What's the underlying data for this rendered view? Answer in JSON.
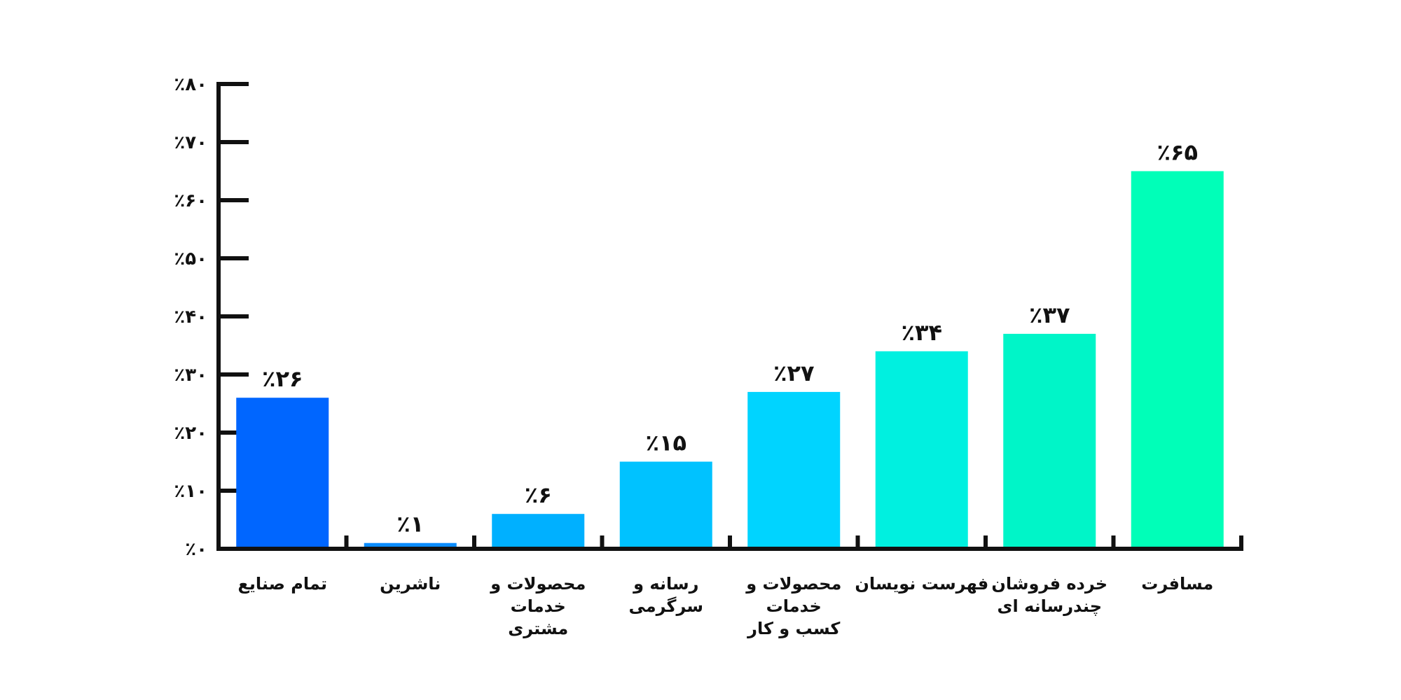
{
  "chart_data": {
    "type": "bar",
    "title": "",
    "xlabel": "",
    "ylabel": "",
    "ylim": [
      0,
      80
    ],
    "grid": false,
    "value_prefix": "٪",
    "yticks": [
      0,
      10,
      20,
      30,
      40,
      50,
      60,
      70,
      80
    ],
    "ytick_labels": [
      "٪۰",
      "٪۱۰",
      "٪۲۰",
      "٪۳۰",
      "٪۴۰",
      "٪۵۰",
      "٪۶۰",
      "٪۷۰",
      "٪۸۰"
    ],
    "categories": [
      [
        "تمام صنایع"
      ],
      [
        "ناشرین"
      ],
      [
        "محصولات و",
        "خدمات",
        "مشتری"
      ],
      [
        "رسانه و",
        "سرگرمی"
      ],
      [
        "محصولات و",
        "خدمات",
        "کسب و کار"
      ],
      [
        "فهرست نویسان"
      ],
      [
        "خرده فروشان",
        "چندرسانه ای"
      ],
      [
        "مسافرت"
      ]
    ],
    "values": [
      26,
      1,
      6,
      15,
      27,
      34,
      37,
      65
    ],
    "value_labels": [
      "٪۲۶",
      "٪۱",
      "٪۶",
      "٪۱۵",
      "٪۲۷",
      "٪۳۴",
      "٪۳۷",
      "٪۶۵"
    ],
    "colors": [
      "#0066ff",
      "#0a8cff",
      "#00b0ff",
      "#00c2ff",
      "#00d4ff",
      "#00f0e0",
      "#00f5c8",
      "#00ffb8"
    ]
  }
}
